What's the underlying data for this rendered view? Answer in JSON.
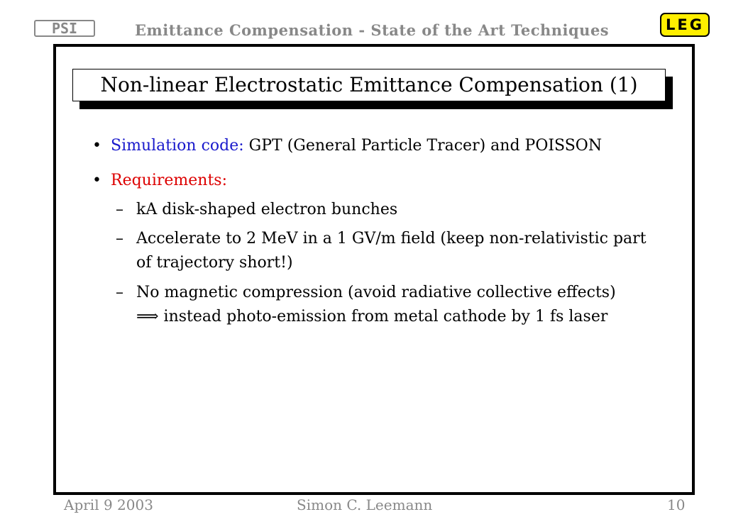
{
  "header": {
    "logo_left": "PSI",
    "title": "Emittance Compensation - State of the Art Techniques",
    "logo_right": "LEG"
  },
  "slide": {
    "title": "Non-linear Electrostatic Emittance Compensation (1)",
    "bullets": [
      {
        "label": "Simulation code:",
        "text": "GPT (General Particle Tracer) and POISSON"
      },
      {
        "label": "Requirements:",
        "subitems": [
          [
            "kA disk-shaped electron bunches"
          ],
          [
            "Accelerate to 2 MeV in a 1 GV/m field (keep non-relativistic part",
            "of trajectory short!)"
          ],
          [
            "No magnetic compression (avoid radiative collective effects)",
            "⟹ instead photo-emission from metal cathode by 1 fs laser"
          ]
        ]
      }
    ]
  },
  "footer": {
    "date": "April 9 2003",
    "author": "Simon C. Leemann",
    "page": "10"
  }
}
